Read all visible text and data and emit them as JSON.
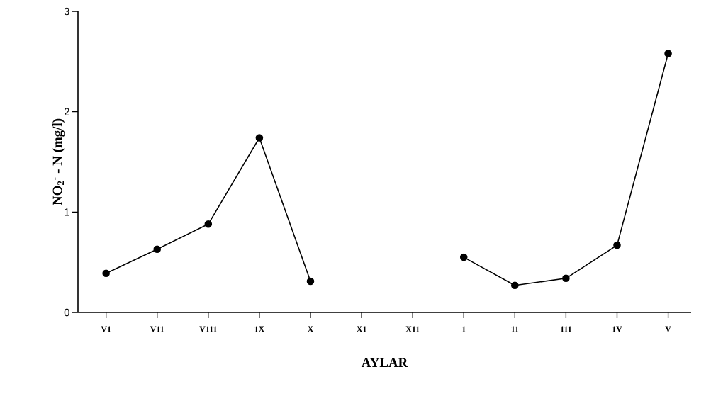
{
  "chart_data": {
    "type": "line",
    "xlabel": "AYLAR",
    "ylabel": "NO$_{2}$$^{-}$ - N (mg/l)",
    "categories": [
      "V1",
      "V11",
      "V111",
      "1X",
      "X",
      "X1",
      "X11",
      "1",
      "11",
      "111",
      "1V",
      "V"
    ],
    "series": [
      {
        "color": "#000000",
        "values": [
          0.39,
          0.63,
          0.88,
          1.74,
          0.31,
          null,
          null,
          0.55,
          0.27,
          0.34,
          0.67,
          2.58
        ]
      }
    ],
    "ylim": [
      0,
      3
    ],
    "yticks": [
      0,
      1,
      2,
      3
    ],
    "marker": "circle",
    "line_style": "solid"
  }
}
